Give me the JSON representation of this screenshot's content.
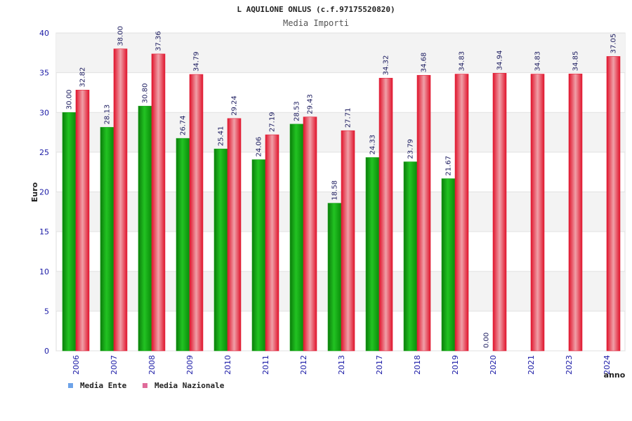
{
  "title": "L AQUILONE ONLUS (c.f.97175520820)",
  "subtitle": "Media Importi",
  "colors": {
    "ente": "#1ea51e",
    "nazionale": "#e3223a",
    "legend_ente": "#6ea3e8",
    "legend_nazionale": "#e06b9a",
    "band": "#f3f3f3",
    "tick_text": "#1a1aa6"
  },
  "chart_data": {
    "type": "bar",
    "title": "L AQUILONE ONLUS (c.f.97175520820)",
    "subtitle": "Media Importi",
    "ylabel": "Euro",
    "xlabel": "anno",
    "ylim": [
      0,
      40
    ],
    "yticks": [
      0,
      5,
      10,
      15,
      20,
      25,
      30,
      35,
      40
    ],
    "grid": true,
    "legend_position": "bottom-left",
    "categories": [
      "2006",
      "2007",
      "2008",
      "2009",
      "2010",
      "2011",
      "2012",
      "2013",
      "2017",
      "2018",
      "2019",
      "2020",
      "2021",
      "2023",
      "2024"
    ],
    "series": [
      {
        "name": "Media Ente",
        "values": [
          30.0,
          28.13,
          30.8,
          26.74,
          25.41,
          24.06,
          28.53,
          18.58,
          24.33,
          23.79,
          21.67,
          0.0,
          null,
          null,
          null
        ],
        "labels": [
          "30.00",
          "28.13",
          "30.80",
          "26.74",
          "25.41",
          "24.06",
          "28.53",
          "18.58",
          "24.33",
          "23.79",
          "21.67",
          "0.00",
          "",
          "",
          ""
        ]
      },
      {
        "name": "Media Nazionale",
        "values": [
          32.82,
          38.0,
          37.36,
          34.79,
          29.24,
          27.19,
          29.43,
          27.71,
          34.32,
          34.68,
          34.83,
          34.94,
          34.83,
          34.85,
          37.05
        ],
        "labels": [
          "32.82",
          "38.00",
          "37.36",
          "34.79",
          "29.24",
          "27.19",
          "29.43",
          "27.71",
          "34.32",
          "34.68",
          "34.83",
          "34.94",
          "34.83",
          "34.85",
          "37.05"
        ]
      }
    ]
  }
}
